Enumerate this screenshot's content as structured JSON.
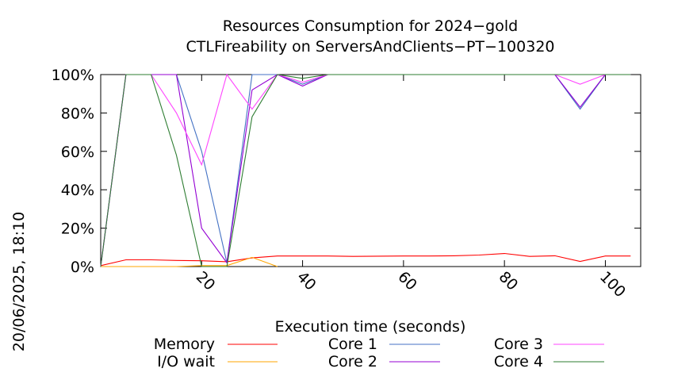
{
  "chart_data": {
    "type": "line",
    "title": [
      "Resources Consumption for 2024−gold",
      "CTLFireability on ServersAndClients−PT−100320"
    ],
    "xlabel": "Execution time (seconds)",
    "ylabel": "",
    "side_label": "20/06/2025, 18:10",
    "xlim": [
      0,
      107
    ],
    "ylim": [
      0,
      100
    ],
    "x_ticks": [
      20,
      40,
      60,
      80,
      100
    ],
    "y_ticks": [
      0,
      20,
      40,
      60,
      80,
      100
    ],
    "y_tick_labels": [
      "0%",
      "20%",
      "40%",
      "60%",
      "80%",
      "100%"
    ],
    "legend_placement": "bottom",
    "grid": false,
    "series": [
      {
        "name": "Memory",
        "color": "#ff0000",
        "x": [
          0,
          5,
          10,
          15,
          20,
          25,
          30,
          35,
          40,
          45,
          50,
          55,
          60,
          65,
          70,
          75,
          80,
          85,
          90,
          95,
          100,
          105
        ],
        "y": [
          0.5,
          3.5,
          3.5,
          3.2,
          3.0,
          2.5,
          4.5,
          5.5,
          5.5,
          5.5,
          5.3,
          5.4,
          5.5,
          5.5,
          5.6,
          6.0,
          6.8,
          5.3,
          5.6,
          2.7,
          5.5,
          5.5
        ]
      },
      {
        "name": "I/O wait",
        "color": "#ffa500",
        "x": [
          0,
          5,
          10,
          15,
          20,
          25,
          30,
          35
        ],
        "y": [
          0,
          0,
          0,
          0,
          0.5,
          0.5,
          4.8,
          0
        ]
      },
      {
        "name": "Core 1",
        "color": "#4472c4",
        "x": [
          0,
          5,
          10,
          15,
          20,
          25,
          30,
          35,
          40,
          45,
          50,
          55,
          60,
          65,
          70,
          75,
          80,
          85,
          90,
          95,
          100,
          105
        ],
        "y": [
          0,
          100,
          100,
          100,
          60,
          2,
          100,
          100,
          95,
          100,
          100,
          100,
          100,
          100,
          100,
          100,
          100,
          100,
          100,
          82,
          100,
          100
        ]
      },
      {
        "name": "Core 2",
        "color": "#9400d3",
        "x": [
          0,
          5,
          10,
          15,
          20,
          25,
          30,
          35,
          40,
          45,
          50,
          55,
          60,
          65,
          70,
          75,
          80,
          85,
          90,
          95,
          100,
          105
        ],
        "y": [
          0,
          100,
          100,
          100,
          20,
          2,
          92,
          100,
          94,
          100,
          100,
          100,
          100,
          100,
          100,
          100,
          100,
          100,
          100,
          83,
          100,
          100
        ]
      },
      {
        "name": "Core 3",
        "color": "#ff44ff",
        "x": [
          0,
          5,
          10,
          15,
          20,
          25,
          30,
          35,
          40,
          45,
          50,
          55,
          60,
          65,
          70,
          75,
          80,
          85,
          90,
          95,
          100,
          105
        ],
        "y": [
          0,
          100,
          100,
          80,
          53,
          100,
          82,
          100,
          96,
          100,
          100,
          100,
          100,
          100,
          100,
          100,
          100,
          100,
          100,
          95,
          100,
          100
        ]
      },
      {
        "name": "Core 4",
        "color": "#2e7d32",
        "x": [
          0,
          5,
          10,
          15,
          20,
          25,
          30,
          35,
          40,
          45,
          50,
          55,
          60,
          65,
          70,
          75,
          80,
          85,
          90,
          95,
          100,
          105
        ],
        "y": [
          0,
          100,
          100,
          58,
          0,
          0,
          78,
          100,
          98,
          100,
          100,
          100,
          100,
          100,
          100,
          100,
          100,
          100,
          100,
          100,
          100,
          100
        ]
      }
    ]
  }
}
